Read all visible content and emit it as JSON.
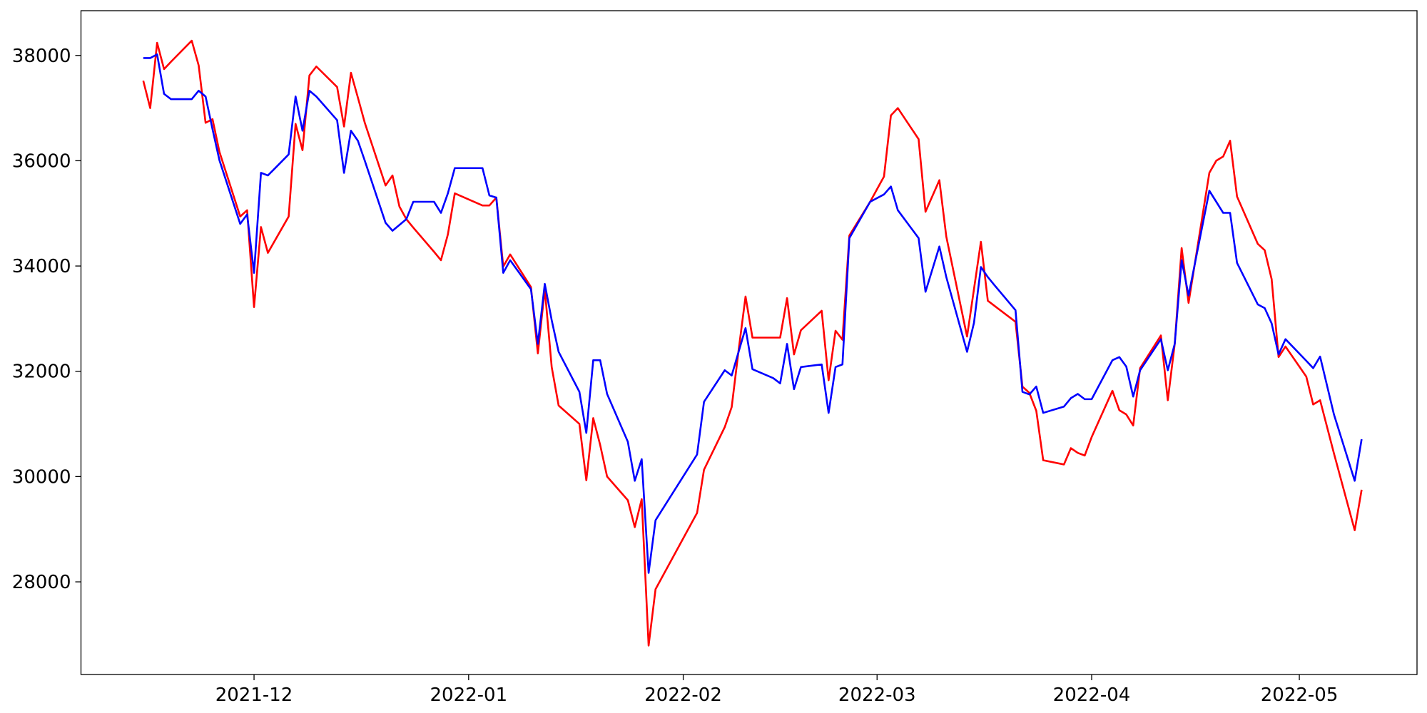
{
  "chart_data": {
    "type": "line",
    "x": [
      "2021-11-15",
      "2021-11-16",
      "2021-11-17",
      "2021-11-18",
      "2021-11-19",
      "2021-11-22",
      "2021-11-23",
      "2021-11-24",
      "2021-11-25",
      "2021-11-26",
      "2021-11-29",
      "2021-11-30",
      "2021-12-01",
      "2021-12-02",
      "2021-12-03",
      "2021-12-06",
      "2021-12-07",
      "2021-12-08",
      "2021-12-09",
      "2021-12-10",
      "2021-12-13",
      "2021-12-14",
      "2021-12-15",
      "2021-12-16",
      "2021-12-17",
      "2021-12-20",
      "2021-12-21",
      "2021-12-22",
      "2021-12-23",
      "2021-12-24",
      "2021-12-27",
      "2021-12-28",
      "2021-12-29",
      "2021-12-30",
      "2022-01-03",
      "2022-01-04",
      "2022-01-05",
      "2022-01-06",
      "2022-01-07",
      "2022-01-10",
      "2022-01-11",
      "2022-01-12",
      "2022-01-13",
      "2022-01-14",
      "2022-01-17",
      "2022-01-18",
      "2022-01-19",
      "2022-01-20",
      "2022-01-21",
      "2022-01-24",
      "2022-01-25",
      "2022-01-26",
      "2022-01-27",
      "2022-01-28",
      "2022-02-03",
      "2022-02-04",
      "2022-02-07",
      "2022-02-08",
      "2022-02-09",
      "2022-02-10",
      "2022-02-11",
      "2022-02-14",
      "2022-02-15",
      "2022-02-16",
      "2022-02-17",
      "2022-02-18",
      "2022-02-21",
      "2022-02-22",
      "2022-02-23",
      "2022-02-24",
      "2022-02-25",
      "2022-02-28",
      "2022-03-02",
      "2022-03-03",
      "2022-03-04",
      "2022-03-07",
      "2022-03-08",
      "2022-03-10",
      "2022-03-11",
      "2022-03-14",
      "2022-03-15",
      "2022-03-16",
      "2022-03-17",
      "2022-03-18",
      "2022-03-21",
      "2022-03-22",
      "2022-03-23",
      "2022-03-24",
      "2022-03-25",
      "2022-03-28",
      "2022-03-29",
      "2022-03-30",
      "2022-03-31",
      "2022-04-01",
      "2022-04-04",
      "2022-04-05",
      "2022-04-06",
      "2022-04-07",
      "2022-04-08",
      "2022-04-11",
      "2022-04-12",
      "2022-04-13",
      "2022-04-14",
      "2022-04-15",
      "2022-04-18",
      "2022-04-19",
      "2022-04-20",
      "2022-04-21",
      "2022-04-22",
      "2022-04-25",
      "2022-04-26",
      "2022-04-27",
      "2022-04-28",
      "2022-04-29",
      "2022-05-02",
      "2022-05-03",
      "2022-05-04",
      "2022-05-06",
      "2022-05-09",
      "2022-05-10"
    ],
    "series": [
      {
        "color": "#ff0000",
        "values": [
          37520,
          37000,
          38240,
          37740,
          37880,
          38280,
          37810,
          36720,
          36790,
          36170,
          34940,
          35060,
          33220,
          34740,
          34250,
          34940,
          36700,
          36200,
          37620,
          37790,
          37400,
          36650,
          37670,
          37200,
          36720,
          35530,
          35720,
          35130,
          34890,
          34730,
          34270,
          34110,
          34600,
          35380,
          35150,
          35150,
          35300,
          33990,
          34220,
          33600,
          32340,
          33560,
          32080,
          31350,
          31000,
          29930,
          31110,
          30600,
          30000,
          29550,
          29040,
          29570,
          26790,
          27860,
          29310,
          30130,
          30940,
          31320,
          32400,
          33420,
          32640,
          32640,
          32640,
          33390,
          32320,
          32780,
          33150,
          31830,
          32770,
          32600,
          34580,
          35220,
          35700,
          36860,
          37000,
          36410,
          35030,
          35630,
          34560,
          32660,
          33560,
          34460,
          33340,
          33240,
          32940,
          31710,
          31590,
          31250,
          30310,
          30230,
          30540,
          30450,
          30400,
          30750,
          31630,
          31260,
          31180,
          30970,
          32060,
          32680,
          31450,
          32520,
          34340,
          33300,
          35770,
          36000,
          36080,
          36380,
          35320,
          34420,
          34300,
          33750,
          32270,
          32470,
          31900,
          31370,
          31450,
          30440,
          28980,
          29750
        ]
      },
      {
        "color": "#0000ff",
        "values": [
          37950,
          37950,
          38020,
          37270,
          37170,
          37170,
          37330,
          37220,
          36600,
          36010,
          34800,
          34980,
          33870,
          35770,
          35720,
          36120,
          37220,
          36570,
          37330,
          37220,
          36770,
          35770,
          36570,
          36380,
          36000,
          34820,
          34670,
          34780,
          34890,
          35220,
          35220,
          35010,
          35380,
          35860,
          35860,
          35340,
          35300,
          33870,
          34110,
          33560,
          32520,
          33660,
          32970,
          32370,
          31610,
          30830,
          32210,
          32210,
          31570,
          30660,
          29920,
          30330,
          28170,
          29170,
          30420,
          31420,
          32020,
          31920,
          32370,
          32820,
          32040,
          31870,
          31770,
          32520,
          31660,
          32080,
          32130,
          31210,
          32080,
          32130,
          34530,
          35220,
          35360,
          35510,
          35060,
          34530,
          33510,
          34370,
          33790,
          32370,
          32920,
          33980,
          33790,
          33630,
          33160,
          31610,
          31560,
          31710,
          31210,
          31330,
          31490,
          31570,
          31470,
          31470,
          32210,
          32270,
          32090,
          31520,
          32020,
          32610,
          32020,
          32520,
          34110,
          33440,
          35430,
          35220,
          35010,
          35010,
          34060,
          33270,
          33200,
          32910,
          32320,
          32610,
          32200,
          32060,
          32280,
          31180,
          29920,
          30710
        ]
      }
    ],
    "xlim": [
      "2021-11-06",
      "2022-05-18"
    ],
    "xticks": [
      {
        "value": "2021-12-01",
        "label": "2021-12"
      },
      {
        "value": "2022-01-01",
        "label": "2022-01"
      },
      {
        "value": "2022-02-01",
        "label": "2022-02"
      },
      {
        "value": "2022-03-01",
        "label": "2022-03"
      },
      {
        "value": "2022-04-01",
        "label": "2022-04"
      },
      {
        "value": "2022-05-01",
        "label": "2022-05"
      }
    ],
    "ylim": [
      26240,
      38850
    ],
    "yticks": [
      28000,
      30000,
      32000,
      34000,
      36000,
      38000
    ],
    "grid": false
  }
}
